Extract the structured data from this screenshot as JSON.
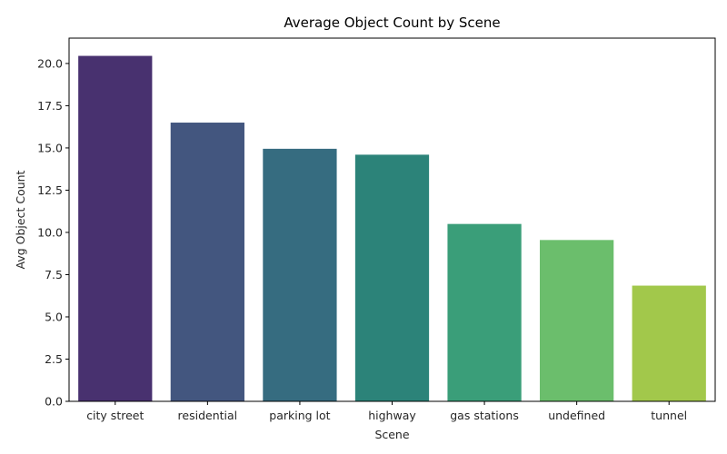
{
  "chart_data": {
    "type": "bar",
    "title": "Average Object Count by Scene",
    "xlabel": "Scene",
    "ylabel": "Avg Object Count",
    "categories": [
      "city street",
      "residential",
      "parking lot",
      "highway",
      "gas stations",
      "undefined",
      "tunnel"
    ],
    "values": [
      20.45,
      16.5,
      14.95,
      14.6,
      10.5,
      9.55,
      6.85
    ],
    "colors": [
      "#48316f",
      "#43567f",
      "#366c80",
      "#2c8379",
      "#3a9e79",
      "#6bbe6c",
      "#a2c84b"
    ],
    "yticks": [
      "0.0",
      "2.5",
      "5.0",
      "7.5",
      "10.0",
      "12.5",
      "15.0",
      "17.5",
      "20.0"
    ],
    "ylim": [
      0,
      21.5
    ],
    "grid": false,
    "legend": "none"
  }
}
